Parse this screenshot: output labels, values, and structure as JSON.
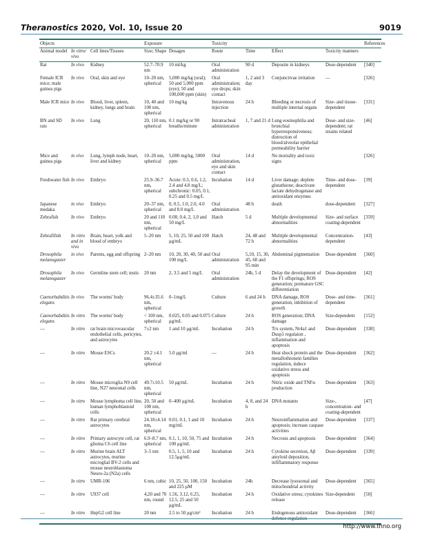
{
  "header": {
    "journal": "Theranostics",
    "issue": "2020, Vol. 10, Issue 20",
    "page": "9019"
  },
  "footer": {
    "url": "http://www.thno.org"
  },
  "colors": {
    "rule_green": "#2f6e5e",
    "rule_blue": "#3a8fc0"
  },
  "table": {
    "groups": {
      "objects": "Objects",
      "exposure": "Exposure",
      "toxicity": "Toxicity",
      "references": "References"
    },
    "columns": [
      "Animal model",
      "In vitro/ vivo",
      "Cell lines/Tissues",
      "Size; Shape",
      "Dosages",
      "Route",
      "Time",
      "Effect",
      "Toxicity manners",
      ""
    ],
    "rows": [
      {
        "italic_animal": false,
        "cells": [
          "Rat",
          "In vivo",
          "Kidney",
          "52.7–70.9 nm",
          "10 ml/kg",
          "Oral administration",
          "90 d",
          "Deposite in kidneys",
          "Dose-dependent",
          "[340]"
        ]
      },
      {
        "italic_animal": false,
        "cells": [
          "Female ICR mice; male guinea pigs",
          "In vivo",
          "Oral, skin and eye",
          "10–20 nm, spherical",
          "5,000 mg/kg (oral); 50 and 5,000 ppm (eye); 50 and 100,000 ppm (skin)",
          "Oral administration; eye drops; skin contact",
          "1, 2 and 3 day",
          "Conjunctivae irritation",
          "—",
          "[326]"
        ]
      },
      {
        "italic_animal": false,
        "cells": [
          "Male ICR mice",
          "In vivo",
          "Blood, liver, spleen, kidney, lungs and brain",
          "10, 40 and 100 nm, spherical",
          "10 mg/kg",
          "Intravenous injection",
          "24 h",
          "Bleeding or necrosis of multiple internal organs",
          "Size- and tissue-dependent",
          "[331]"
        ]
      },
      {
        "italic_animal": false,
        "cells": [
          "BN and SD rats",
          "In vivo",
          "Lung",
          "20, 110 nm, spherical",
          "0.1 mg/kg or 90 breaths/minute",
          "Intratracheal administration",
          "1, 7 and 21 d",
          "Lung eosinophilia and bronchial hyperresponsiveness; distruction of blood/alveolar epithelial permeability barrier",
          "Dose- and size-dependent; rat strains related",
          "[46]"
        ]
      },
      {
        "italic_animal": false,
        "cells": [
          "Mice and guinea pigs",
          "in vivo",
          "Lung, lymph node, heart, liver and kidney",
          "10–20 nm, spherical",
          "5,000 mg/kg, 5000 ppm",
          "Oral administration, eye and skin contact",
          "14 d",
          "No mortality and toxic signs",
          "",
          "[326]"
        ]
      },
      {
        "italic_animal": false,
        "cells": [
          "Freshwater fish",
          "In vivo",
          "Embryo",
          "25.9–36.7 nm, spherical",
          "Acute: 0.3, 0.6, 1.2, 2.4 and 4.8 mg/L; subchronic: 0.05, 0.1, 0.25 and 0.5 mg/L",
          "Incubation",
          "14 d",
          "Liver damage; deplete glutathione; deactivate lactate dehydrogenase and antioxidant enzymes",
          "Time- and dose-dependent",
          "[39]"
        ]
      },
      {
        "italic_animal": false,
        "cells": [
          "Japanese medaka",
          "in vivo",
          "Embryo",
          "20–37 nm, spherical",
          "0, 0.5, 1.0, 2.0, 4.0 and 8.0 mg/L",
          "Oral administration",
          "48 h",
          "death",
          "dose-dependent",
          "[327]"
        ]
      },
      {
        "italic_animal": false,
        "cells": [
          "Zebrafish",
          "In vivo",
          "Embryo",
          "20 and 110 nm, spherical",
          "0.08, 0.4, 2, 1,0 and 50 mg/L",
          "Hatch",
          "5 d",
          "Multiple developmental abnormalities",
          "Size- and surface coating-dependent",
          "[359]"
        ]
      },
      {
        "italic_animal": false,
        "cells": [
          "Zebrafifish",
          "In vitro and in vivo",
          "Brain, heart, yolk and blood of embryo",
          "5–20 nm",
          "5, 10, 25, 50 and 100 μg/mL",
          "Hatch",
          "24, 48 and 72 h",
          "Multiple developmental abnormalities",
          "Concentration-dependent",
          "[43]"
        ]
      },
      {
        "italic_animal": true,
        "cells": [
          "Drosophila melanogaster",
          "in vivo",
          "Parents, egg and offspring",
          "2–20 nm",
          "10, 20, 30, 40, 50 and 100 mg/L",
          "Oral administration",
          "5,10, 15, 30, 45, 60 and 95 min",
          "Abdominal pigmentation",
          "Dose-dependent",
          "[360]"
        ]
      },
      {
        "italic_animal": true,
        "cells": [
          "Drosophila melanogaster",
          "In vivo",
          "Germline stem cell; testis",
          "20 nm",
          "2, 3.5 and 5 mg/L",
          "Oral administration",
          "24h, 5 d",
          "Delay the development of the F1 offsprings; ROS generation; premature GSC differentiation",
          "Dose-dependent",
          "[42]"
        ]
      },
      {
        "italic_animal": true,
        "cells": [
          "Caenorhabditis elegans",
          "In vivo",
          "The worms' body",
          "96.4±35.6 nm, spherical",
          "0–1mg/L",
          "Culture",
          "6 and 24 h",
          "DNA damage, ROS generation, inhibition of growth",
          "Dose- and time-dependent",
          "[361]"
        ]
      },
      {
        "italic_animal": true,
        "cells": [
          "Caenorhabditis elegans",
          "In vitro",
          "The worms' body",
          "< 100 nm, spherical",
          "0.025, 0.05 and 0.075 μg/mL",
          "Culture",
          "24 h",
          "ROS generation; DNA damage",
          "Size-dependent",
          "[152]"
        ]
      },
      {
        "italic_animal": false,
        "cells": [
          "—",
          "In vitro",
          "rat brain microvascular endothelial cells, pericytes, and astrocytes",
          "7±2 nm",
          "1 and 10 μg/mL",
          "Incubation",
          "24 h",
          "Trx system, Nr4a1 and Dusp1 regulaion , inflammation and apoptosis",
          "Dose-dependent",
          "[338]"
        ]
      },
      {
        "italic_animal": false,
        "cells": [
          "—",
          "In vitro",
          "Mouse ESCs",
          "20.2 ±4.1 nm, spherical",
          "5.0 μg/ml",
          "—",
          "24 h",
          "Heat shock protein and the metallothionein families regulation, induce oxidative stress and apoptosis",
          "Dose-dependent",
          "[362]"
        ]
      },
      {
        "italic_animal": false,
        "cells": [
          "—",
          "In vitro",
          "Mouse microglia N9 cell line, N27 neuronal cells",
          "49.7±10.5 nm, spherical",
          "50 μg/mL",
          "Incubation",
          "24 h",
          "Nitric oxide and TNFα production",
          "Dose-dependent",
          "[363]"
        ]
      },
      {
        "italic_animal": false,
        "cells": [
          "—",
          "In vitro",
          "Mouse lymphoma cell line, human lymphoblastoid cells",
          "20, 50 and 100 nm, spherical",
          "0–400 μg/mL",
          "Incubation",
          "4, 8, and 24 h",
          "DNA mutants",
          "Size-, concentration- and coating-dependent",
          "[47]"
        ]
      },
      {
        "italic_animal": false,
        "cells": [
          "—",
          "In vitro",
          "Rat primary cerebral astrocytes",
          "24.18±4.14 nm, spherical",
          "0.01, 0.1, 1 and 10 mg/mL",
          "Incubation",
          "24 h",
          "Neuroinflammation and apoptosis; increase caspase activities",
          "Dose-dependent",
          "[337]"
        ]
      },
      {
        "italic_animal": false,
        "cells": [
          "—",
          "In vitro",
          "Primary astrocyte cell, rat glioma C6 cell line",
          "6.9–8.7 nm, spherical",
          "0.1, 1, 10, 50, 75 and 100 μg/mL",
          "Incubation",
          "24 h",
          "Necrosis and apoptosis",
          "Dose-dependent",
          "[364]"
        ]
      },
      {
        "italic_animal": false,
        "cells": [
          "—",
          "In vitro",
          "Murine brain ALT astrocytes, murine microglial BV-2 cells and mouse neuroblastoma Neuro-2a (N2a) cells",
          "3–5 nm",
          "0.5, 1, 5, 10 and 12.5μg/mL",
          "Incubation",
          "24 h",
          "Cytokine secretion, Aβ amyloid deposition, infiflammatory response",
          "Dose-dependent",
          "[339]"
        ]
      },
      {
        "italic_animal": false,
        "cells": [
          "—",
          "In vitro",
          "UMR-106",
          "6 nm, cubic",
          "10, 25, 50, 100, 150 and 225 μM",
          "Incubation",
          "24h",
          "Decrease lysosomal and mitochondrial activity",
          "Dose-dependent",
          "[365]"
        ]
      },
      {
        "italic_animal": false,
        "cells": [
          "—",
          "In vitro",
          "U937 cell",
          "4,20 and 70 nm, round",
          "1.56, 3.12, 6.25, 12.5, 25 and 50 μg/mL",
          "Incubation",
          "24 h",
          "Oxidative stress; cytokines release",
          "Size-dependent",
          "[50]"
        ]
      },
      {
        "italic_animal": false,
        "cells": [
          "—",
          "In vitro",
          "HepG2 cell line",
          "20 nm",
          "2.5 to 50 μg/cm²",
          "Incubation",
          "24 h",
          "Endogenous antioxidant defence regulation",
          "Dose-dependent",
          "[366]"
        ]
      }
    ]
  }
}
